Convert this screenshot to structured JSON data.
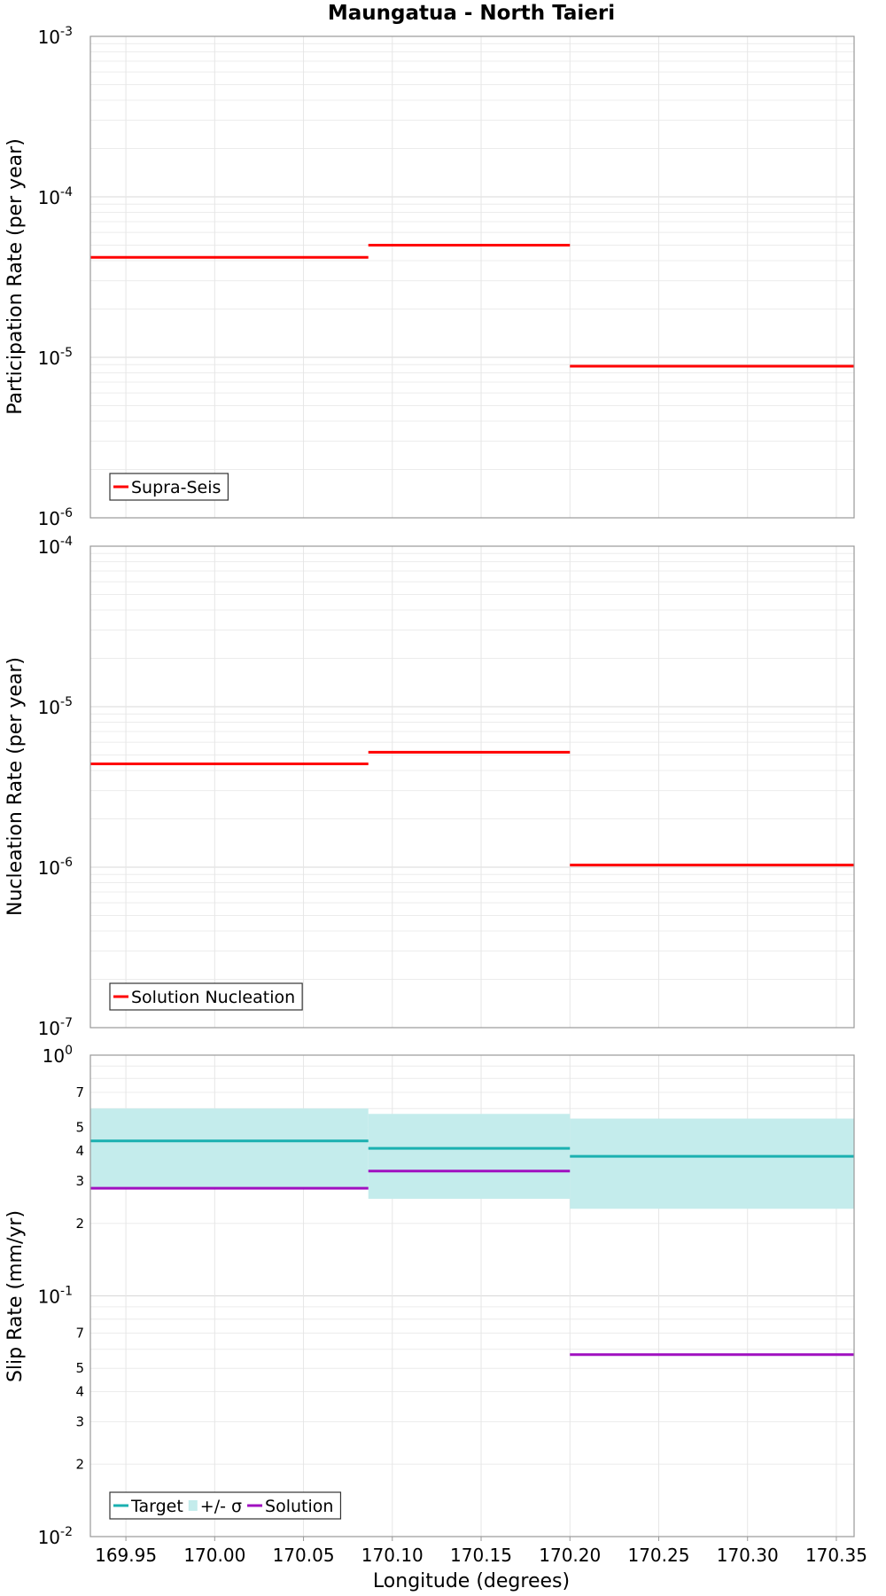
{
  "chart_data": [
    {
      "type": "line",
      "title": "Maungatua - North Taieri",
      "ylabel": "Participation Rate (per year)",
      "xlabel": "",
      "scale": "log",
      "ylim": [
        1e-06,
        0.001
      ],
      "xlim": [
        169.93,
        170.36
      ],
      "grid": true,
      "legend_position": "bottom-left",
      "y_decade_labels": [
        {
          "base": "10",
          "exp": "-6"
        },
        {
          "base": "10",
          "exp": "-5"
        },
        {
          "base": "10",
          "exp": "-4"
        },
        {
          "base": "10",
          "exp": "-3"
        }
      ],
      "series": [
        {
          "name": "Supra-Seis",
          "color": "#ff0000",
          "kind": "step",
          "segments": [
            {
              "x0": 169.93,
              "x1": 170.0865,
              "y": 4.2e-05
            },
            {
              "x0": 170.0865,
              "x1": 170.2,
              "y": 5e-05
            },
            {
              "x0": 170.2,
              "x1": 170.36,
              "y": 8.8e-06
            }
          ]
        }
      ]
    },
    {
      "type": "line",
      "ylabel": "Nucleation Rate (per year)",
      "xlabel": "",
      "scale": "log",
      "ylim": [
        1e-07,
        0.0001
      ],
      "xlim": [
        169.93,
        170.36
      ],
      "grid": true,
      "legend_position": "bottom-left",
      "y_decade_labels": [
        {
          "base": "10",
          "exp": "-7"
        },
        {
          "base": "10",
          "exp": "-6"
        },
        {
          "base": "10",
          "exp": "-5"
        },
        {
          "base": "10",
          "exp": "-4"
        }
      ],
      "series": [
        {
          "name": "Solution Nucleation",
          "color": "#ff0000",
          "kind": "step",
          "segments": [
            {
              "x0": 169.93,
              "x1": 170.0865,
              "y": 4.4e-06
            },
            {
              "x0": 170.0865,
              "x1": 170.2,
              "y": 5.2e-06
            },
            {
              "x0": 170.2,
              "x1": 170.36,
              "y": 1.03e-06
            }
          ]
        }
      ]
    },
    {
      "type": "line",
      "ylabel": "Slip Rate (mm/yr)",
      "xlabel": "Longitude (degrees)",
      "scale": "log",
      "ylim": [
        0.01,
        1
      ],
      "xlim": [
        169.93,
        170.36
      ],
      "grid": true,
      "legend_position": "bottom-left",
      "y_decade_labels": [
        {
          "base": "10",
          "exp": "-2"
        },
        {
          "base": "10",
          "exp": "-1"
        },
        {
          "base": "10",
          "exp": "0"
        }
      ],
      "y_minor_labels": [
        "2",
        "3",
        "4",
        "5",
        "7"
      ],
      "x_ticks": [
        "169.95",
        "170.00",
        "170.05",
        "170.10",
        "170.15",
        "170.20",
        "170.25",
        "170.30",
        "170.35"
      ],
      "series": [
        {
          "name": "+/- σ",
          "color": "#c4ecec",
          "kind": "band",
          "segments": [
            {
              "x0": 169.93,
              "x1": 170.0865,
              "low": 0.28,
              "high": 0.6
            },
            {
              "x0": 170.0865,
              "x1": 170.2,
              "low": 0.253,
              "high": 0.57
            },
            {
              "x0": 170.2,
              "x1": 170.36,
              "low": 0.23,
              "high": 0.545
            }
          ]
        },
        {
          "name": "Target",
          "color": "#1bb0b0",
          "kind": "step",
          "segments": [
            {
              "x0": 169.93,
              "x1": 170.0865,
              "y": 0.44
            },
            {
              "x0": 170.0865,
              "x1": 170.2,
              "y": 0.41
            },
            {
              "x0": 170.2,
              "x1": 170.36,
              "y": 0.38
            }
          ]
        },
        {
          "name": "Solution",
          "color": "#a010c0",
          "kind": "step",
          "segments": [
            {
              "x0": 169.93,
              "x1": 170.0865,
              "y": 0.28
            },
            {
              "x0": 170.0865,
              "x1": 170.2,
              "y": 0.33
            },
            {
              "x0": 170.2,
              "x1": 170.36,
              "y": 0.057
            }
          ]
        }
      ],
      "legend_order": [
        "Target",
        "+/- σ",
        "Solution"
      ]
    }
  ]
}
